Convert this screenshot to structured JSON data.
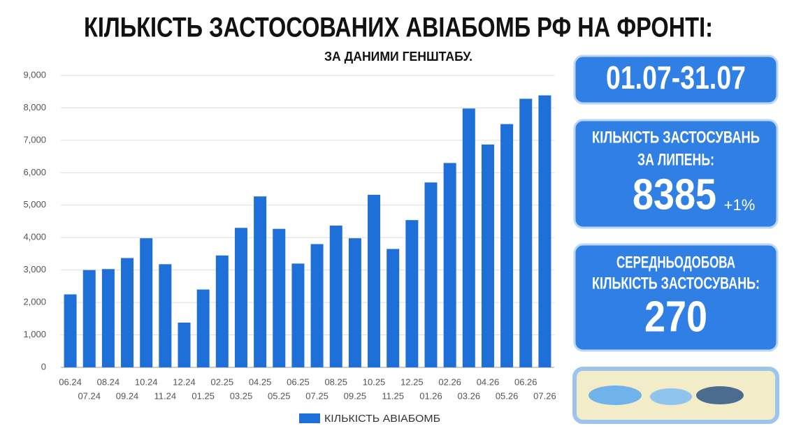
{
  "chart_data": {
    "type": "bar",
    "title": "КІЛЬКІСТЬ ЗАСТОСОВАНИХ АВІАБОМБ РФ НА ФРОНТІ:",
    "subtitle": "ЗА ДАНИМИ ГЕНШТАБУ.",
    "categories": [
      "06.24",
      "07.24",
      "08.24",
      "09.24",
      "10.24",
      "11.24",
      "12.24",
      "01.25",
      "02.25",
      "03.25",
      "04.25",
      "05.25",
      "06.25",
      "07.25",
      "08.25",
      "09.25",
      "10.25",
      "11.25",
      "12.25",
      "01.26",
      "02.26",
      "03.26",
      "04.26",
      "05.26",
      "06.26",
      "07.26"
    ],
    "series": [
      {
        "name": "КІЛЬКІСТЬ АВІАБОМБ",
        "color": "#1f6fd8",
        "values": [
          2250,
          3000,
          3030,
          3370,
          3980,
          3180,
          1380,
          2400,
          3450,
          4300,
          5270,
          4270,
          3200,
          3800,
          4370,
          3980,
          5320,
          3650,
          4540,
          5700,
          6300,
          7980,
          6870,
          7500,
          8280,
          8385
        ]
      }
    ],
    "ylim": [
      0,
      9000
    ],
    "yticks": [
      0,
      {
        "value": 1000,
        "label": "1,000"
      },
      {
        "value": 2000,
        "label": "2,000"
      },
      {
        "value": 3000,
        "label": "3,000"
      },
      {
        "value": 4000,
        "label": "4,000"
      },
      {
        "value": 5000,
        "label": "5,000"
      },
      {
        "value": 6000,
        "label": "6,000"
      },
      {
        "value": 7000,
        "label": "7,000"
      },
      {
        "value": 8000,
        "label": "8,000"
      },
      {
        "value": 9000,
        "label": "9,000"
      }
    ],
    "grid": true
  },
  "side_panels": {
    "period": "01.07-31.07",
    "total_label": [
      "КІЛЬКІСТЬ ЗАСТОСУВАНЬ",
      "ЗА ЛИПЕНЬ:"
    ],
    "total": "8385",
    "change": "+1%",
    "daily_label": [
      "СЕРЕДНЬОДОБОВА",
      "КІЛЬКІСТЬ ЗАСТОСУВАНЬ:"
    ],
    "daily": "270"
  }
}
